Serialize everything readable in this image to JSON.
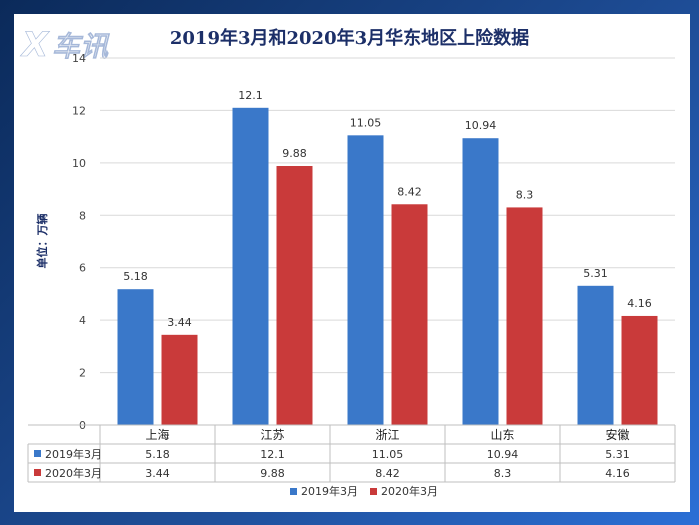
{
  "chart_data": {
    "type": "bar",
    "title": "2019年3月和2020年3月华东地区上险数据",
    "ylabel": "单位：万辆",
    "categories": [
      "上海",
      "江苏",
      "浙江",
      "山东",
      "安徽"
    ],
    "series": [
      {
        "name": "2019年3月",
        "values": [
          5.18,
          12.1,
          11.05,
          10.94,
          5.31
        ],
        "color": "#3a78c9"
      },
      {
        "name": "2020年3月",
        "values": [
          3.44,
          9.88,
          8.42,
          8.3,
          4.16
        ],
        "color": "#c93a3a"
      }
    ],
    "ylim": [
      0,
      14
    ],
    "yticks": [
      0,
      2,
      4,
      6,
      8,
      10,
      12,
      14
    ],
    "legend_position": "bottom",
    "data_table": true
  },
  "watermark": "车讯"
}
